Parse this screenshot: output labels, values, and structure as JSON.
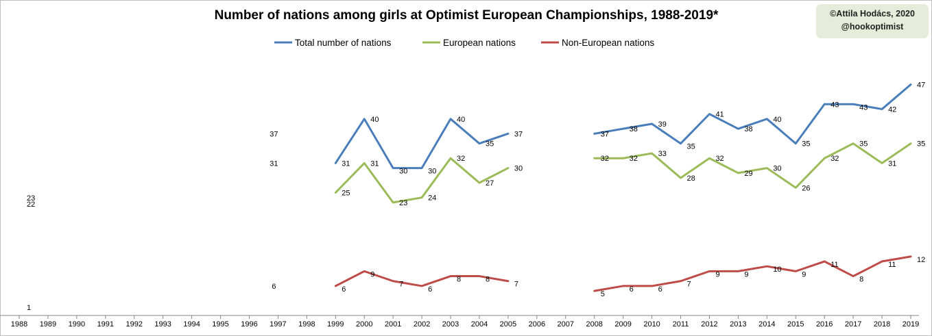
{
  "chart_data": {
    "type": "line",
    "title": "Number of nations among girls at Optimist European Championships, 1988-2019*",
    "credit": [
      "©Attila Hodács, 2020",
      "@hookoptimist"
    ],
    "x": [
      1988,
      1989,
      1990,
      1991,
      1992,
      1993,
      1994,
      1995,
      1996,
      1997,
      1998,
      1999,
      2000,
      2001,
      2002,
      2003,
      2004,
      2005,
      2006,
      2007,
      2008,
      2009,
      2010,
      2011,
      2012,
      2013,
      2014,
      2015,
      2016,
      2017,
      2018,
      2019
    ],
    "ylim": [
      0,
      50
    ],
    "legend_position": "top",
    "grid": false,
    "series": [
      {
        "name": "Total number of nations",
        "color": "#4a7ebb",
        "values": [
          23,
          null,
          null,
          null,
          null,
          null,
          null,
          null,
          null,
          37,
          null,
          31,
          40,
          30,
          30,
          40,
          35,
          37,
          null,
          null,
          37,
          38,
          39,
          35,
          41,
          38,
          40,
          35,
          43,
          43,
          42,
          47
        ],
        "labels": [
          "23",
          "",
          "",
          "",
          "",
          "",
          "",
          "",
          "",
          "37",
          "",
          "31",
          "40",
          "30",
          "30",
          "40",
          "35",
          "37",
          "",
          "",
          "37",
          "38",
          "39",
          "35",
          "41",
          "38",
          "40",
          "35",
          "43",
          "43",
          "42",
          "47"
        ]
      },
      {
        "name": "European nations",
        "color": "#9bbb59",
        "values": [
          22,
          null,
          null,
          null,
          null,
          null,
          null,
          null,
          null,
          31,
          null,
          25,
          31,
          23,
          24,
          32,
          27,
          30,
          null,
          null,
          32,
          32,
          33,
          28,
          32,
          29,
          30,
          26,
          32,
          35,
          31,
          35
        ],
        "labels": [
          "22",
          "",
          "",
          "",
          "",
          "",
          "",
          "",
          "",
          "31",
          "",
          "25",
          "31",
          "23",
          "24",
          "32",
          "27",
          "30",
          "",
          "",
          "32",
          "32",
          "33",
          "28",
          "32",
          "29",
          "30",
          "26",
          "32",
          "35",
          "31",
          "35"
        ]
      },
      {
        "name": "Non-European nations",
        "color": "#be4b48",
        "values": [
          1,
          null,
          null,
          null,
          null,
          null,
          null,
          null,
          null,
          6,
          null,
          6,
          9,
          7,
          6,
          8,
          8,
          7,
          null,
          null,
          5,
          6,
          6,
          7,
          9,
          9,
          10,
          9,
          11,
          8,
          11,
          12
        ],
        "labels": [
          "1",
          "",
          "",
          "",
          "",
          "",
          "",
          "",
          "",
          "6",
          "",
          "6",
          "9",
          "7",
          "6",
          "8",
          "8",
          "7",
          "",
          "",
          "5",
          "6",
          "6",
          "7",
          "9",
          "9",
          "10",
          "9",
          "11",
          "8",
          "11",
          "12"
        ]
      }
    ]
  }
}
